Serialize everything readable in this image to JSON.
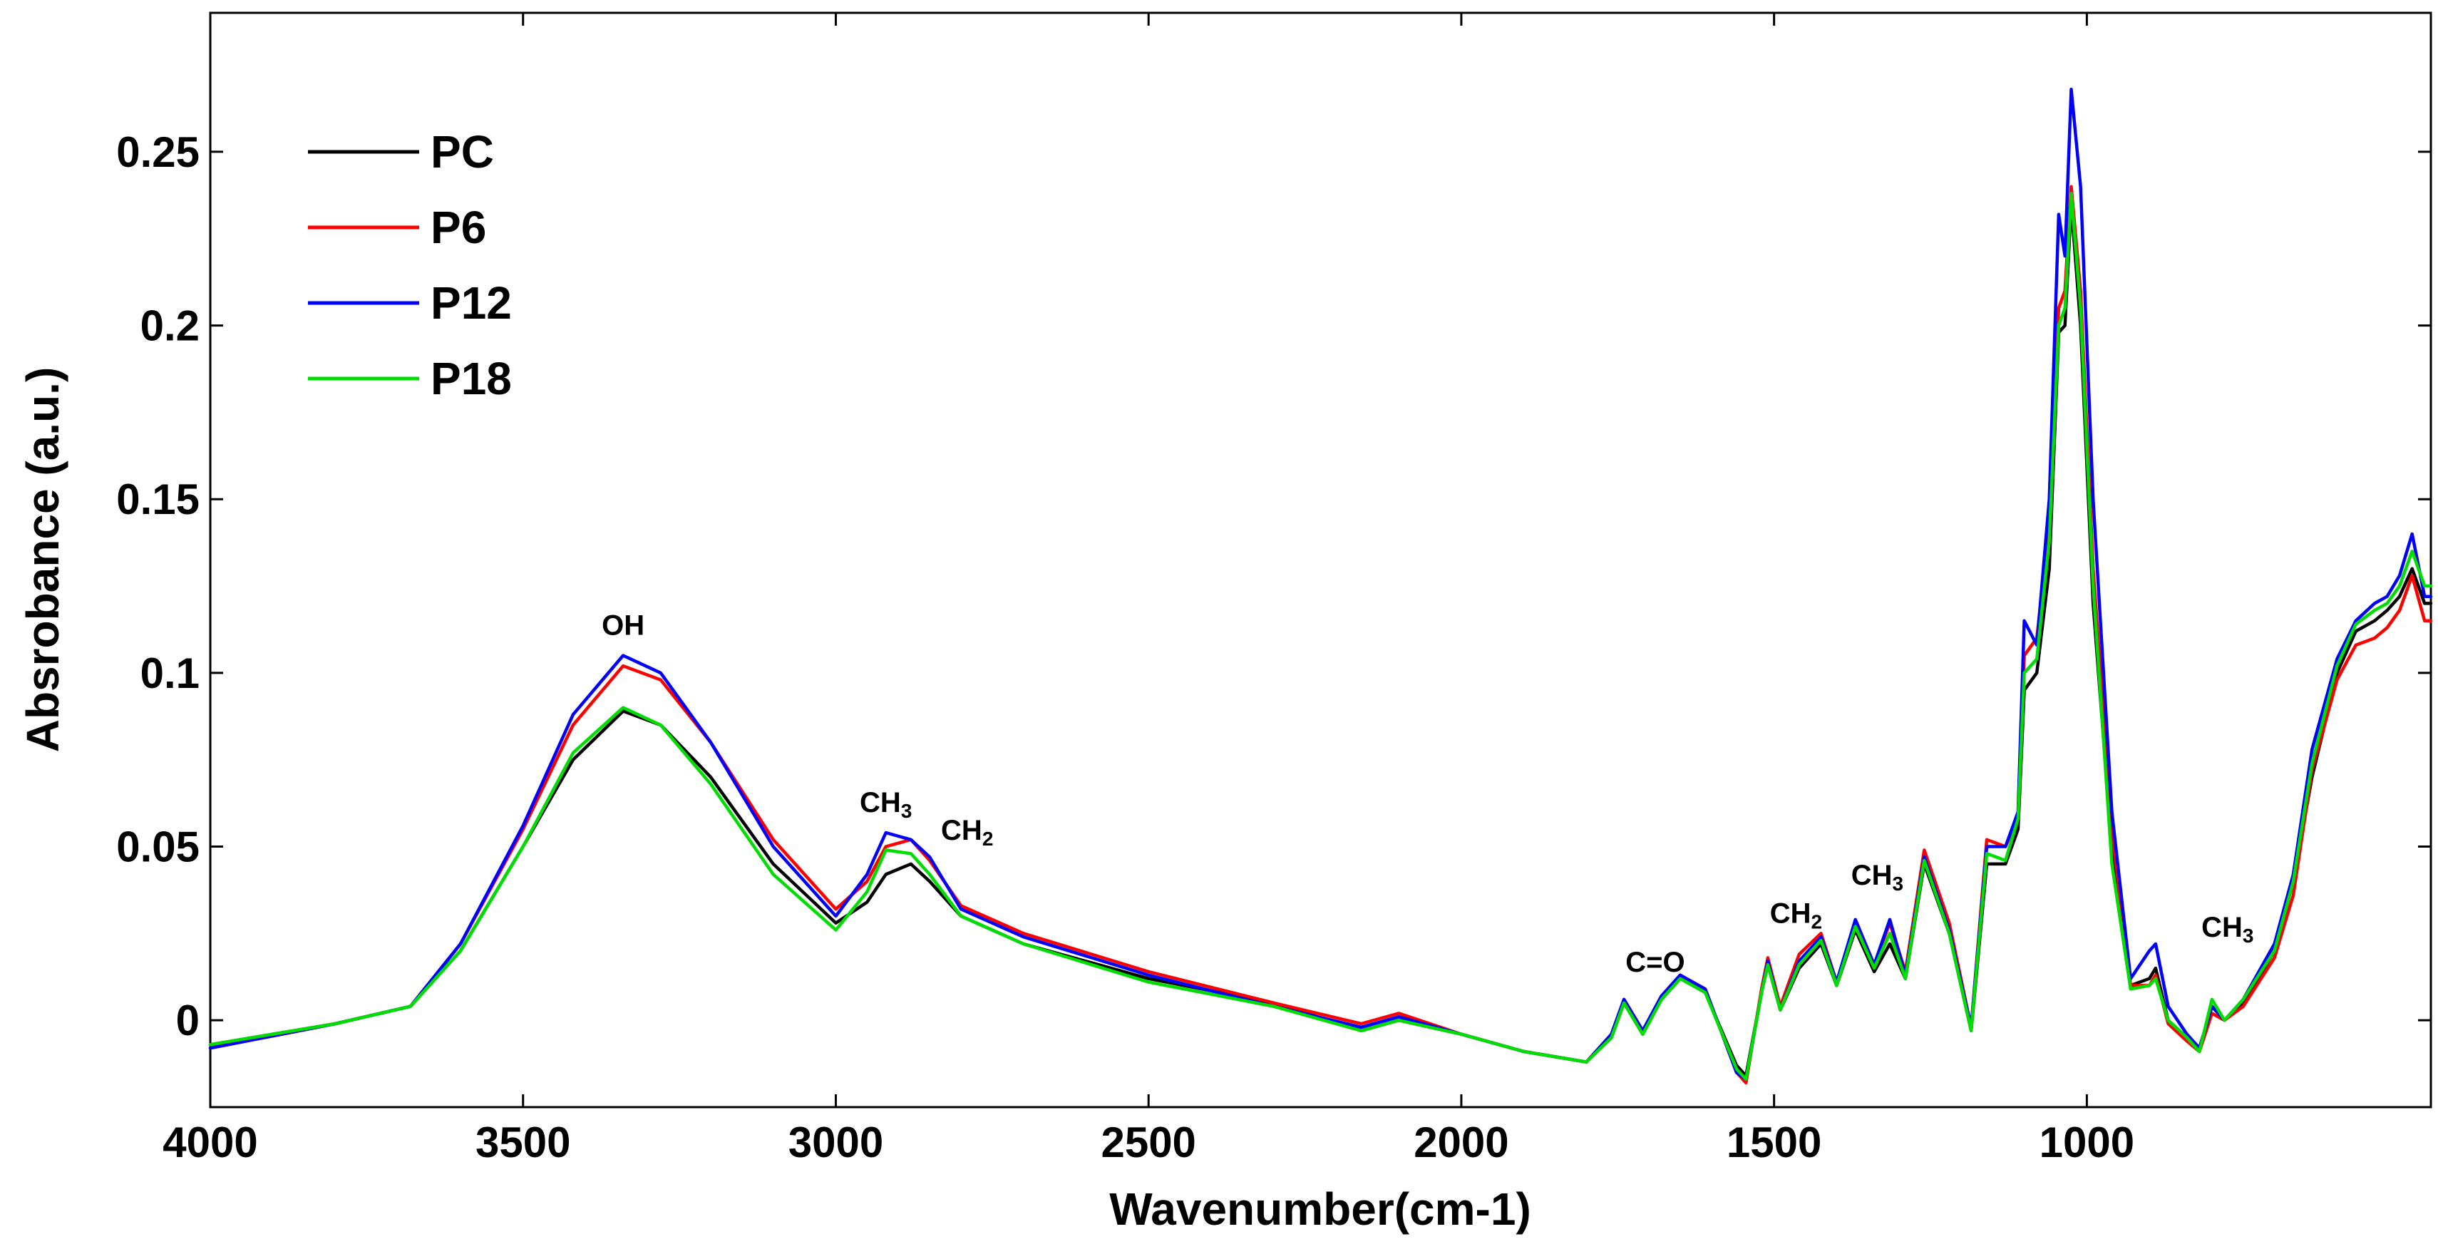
{
  "chart_data": {
    "type": "line",
    "title": "",
    "xlabel": "Wavenumber(cm-1)",
    "ylabel": "Absrobance (a.u.)",
    "xlim": [
      4000,
      450
    ],
    "ylim": [
      -0.025,
      0.29
    ],
    "x_reversed": true,
    "grid": false,
    "legend_position": "top-left",
    "x_ticks": [
      4000,
      3500,
      3000,
      2500,
      2000,
      1500,
      1000
    ],
    "x_tick_labels": [
      "4000",
      "3500",
      "3000",
      "2500",
      "2000",
      "1500",
      "1000"
    ],
    "y_ticks": [
      0,
      0.05,
      0.1,
      0.15,
      0.2,
      0.25
    ],
    "y_tick_labels": [
      "0",
      "0.05",
      "0.1",
      "0.15",
      "0.2",
      "0.25"
    ],
    "x": [
      4000,
      3800,
      3680,
      3600,
      3500,
      3420,
      3340,
      3280,
      3200,
      3100,
      3000,
      2950,
      2920,
      2880,
      2850,
      2800,
      2700,
      2500,
      2300,
      2160,
      2100,
      2000,
      1900,
      1800,
      1760,
      1740,
      1710,
      1680,
      1650,
      1610,
      1560,
      1545,
      1520,
      1510,
      1490,
      1460,
      1425,
      1400,
      1370,
      1340,
      1315,
      1290,
      1260,
      1220,
      1185,
      1160,
      1130,
      1110,
      1100,
      1080,
      1060,
      1045,
      1035,
      1025,
      1010,
      990,
      960,
      930,
      900,
      890,
      870,
      840,
      820,
      800,
      780,
      750,
      700,
      670,
      640,
      600,
      570,
      540,
      520,
      500,
      480,
      460,
      450
    ],
    "series": [
      {
        "name": "PC",
        "color": "#000000",
        "values": [
          -0.007,
          -0.001,
          0.004,
          0.02,
          0.05,
          0.075,
          0.089,
          0.085,
          0.07,
          0.045,
          0.028,
          0.034,
          0.042,
          0.045,
          0.04,
          0.03,
          0.022,
          0.012,
          0.005,
          -0.003,
          0.0,
          -0.004,
          -0.009,
          -0.012,
          -0.005,
          0.005,
          -0.004,
          0.006,
          0.012,
          0.008,
          -0.013,
          -0.016,
          0.008,
          0.016,
          0.003,
          0.015,
          0.022,
          0.01,
          0.026,
          0.014,
          0.022,
          0.012,
          0.045,
          0.025,
          -0.003,
          0.045,
          0.045,
          0.055,
          0.095,
          0.1,
          0.13,
          0.198,
          0.2,
          0.235,
          0.2,
          0.12,
          0.05,
          0.01,
          0.012,
          0.015,
          0.0,
          -0.005,
          -0.008,
          0.004,
          0.0,
          0.005,
          0.02,
          0.04,
          0.07,
          0.1,
          0.112,
          0.115,
          0.118,
          0.122,
          0.13,
          0.12,
          0.12
        ]
      },
      {
        "name": "P6",
        "color": "#ff0000",
        "values": [
          -0.008,
          -0.001,
          0.004,
          0.022,
          0.055,
          0.085,
          0.102,
          0.098,
          0.08,
          0.052,
          0.032,
          0.04,
          0.05,
          0.052,
          0.046,
          0.033,
          0.025,
          0.014,
          0.005,
          -0.001,
          0.002,
          -0.004,
          -0.009,
          -0.012,
          -0.004,
          0.006,
          -0.003,
          0.007,
          0.013,
          0.009,
          -0.015,
          -0.018,
          0.009,
          0.018,
          0.004,
          0.019,
          0.025,
          0.011,
          0.028,
          0.016,
          0.028,
          0.014,
          0.049,
          0.028,
          -0.002,
          0.052,
          0.05,
          0.058,
          0.105,
          0.11,
          0.142,
          0.205,
          0.21,
          0.24,
          0.21,
          0.13,
          0.055,
          0.01,
          0.01,
          0.013,
          -0.001,
          -0.006,
          -0.009,
          0.002,
          0.0,
          0.004,
          0.018,
          0.036,
          0.072,
          0.098,
          0.108,
          0.11,
          0.113,
          0.118,
          0.128,
          0.115,
          0.115
        ]
      },
      {
        "name": "P12",
        "color": "#0000ff",
        "values": [
          -0.008,
          -0.001,
          0.004,
          0.022,
          0.056,
          0.088,
          0.105,
          0.1,
          0.08,
          0.05,
          0.03,
          0.042,
          0.054,
          0.052,
          0.047,
          0.032,
          0.024,
          0.013,
          0.004,
          -0.002,
          0.001,
          -0.004,
          -0.009,
          -0.012,
          -0.004,
          0.006,
          -0.003,
          0.007,
          0.013,
          0.009,
          -0.015,
          -0.017,
          0.008,
          0.017,
          0.003,
          0.017,
          0.024,
          0.011,
          0.029,
          0.016,
          0.029,
          0.013,
          0.047,
          0.026,
          -0.002,
          0.05,
          0.05,
          0.06,
          0.115,
          0.108,
          0.15,
          0.232,
          0.22,
          0.268,
          0.24,
          0.15,
          0.06,
          0.012,
          0.02,
          0.022,
          0.004,
          -0.004,
          -0.008,
          0.004,
          0.0,
          0.006,
          0.022,
          0.042,
          0.078,
          0.104,
          0.115,
          0.12,
          0.122,
          0.128,
          0.14,
          0.122,
          0.122
        ]
      },
      {
        "name": "P18",
        "color": "#00dd00",
        "values": [
          -0.007,
          -0.001,
          0.004,
          0.02,
          0.05,
          0.077,
          0.09,
          0.085,
          0.068,
          0.042,
          0.026,
          0.037,
          0.049,
          0.048,
          0.042,
          0.03,
          0.022,
          0.011,
          0.004,
          -0.003,
          0.0,
          -0.004,
          -0.009,
          -0.012,
          -0.005,
          0.005,
          -0.004,
          0.006,
          0.012,
          0.008,
          -0.014,
          -0.017,
          0.008,
          0.016,
          0.003,
          0.016,
          0.023,
          0.01,
          0.027,
          0.015,
          0.025,
          0.012,
          0.046,
          0.025,
          -0.003,
          0.048,
          0.046,
          0.058,
          0.1,
          0.104,
          0.138,
          0.2,
          0.205,
          0.238,
          0.205,
          0.125,
          0.045,
          0.009,
          0.01,
          0.012,
          0.0,
          -0.005,
          -0.009,
          0.006,
          0.0,
          0.006,
          0.02,
          0.04,
          0.074,
          0.102,
          0.114,
          0.118,
          0.12,
          0.125,
          0.135,
          0.125,
          0.125
        ]
      }
    ],
    "annotations": [
      {
        "text": "OH",
        "x": 3340,
        "y": 0.111
      },
      {
        "text": "CH3",
        "base": "CH",
        "sub": "3",
        "x": 2920,
        "y": 0.06
      },
      {
        "text": "CH2",
        "base": "CH",
        "sub": "2",
        "x": 2790,
        "y": 0.052
      },
      {
        "text": "C=O",
        "x": 1690,
        "y": 0.014
      },
      {
        "text": "CH2",
        "base": "CH",
        "sub": "2",
        "x": 1465,
        "y": 0.028
      },
      {
        "text": "CH3",
        "base": "CH",
        "sub": "3",
        "x": 1335,
        "y": 0.039
      },
      {
        "text": "CH3",
        "base": "CH",
        "sub": "3",
        "x": 775,
        "y": 0.024
      }
    ]
  }
}
